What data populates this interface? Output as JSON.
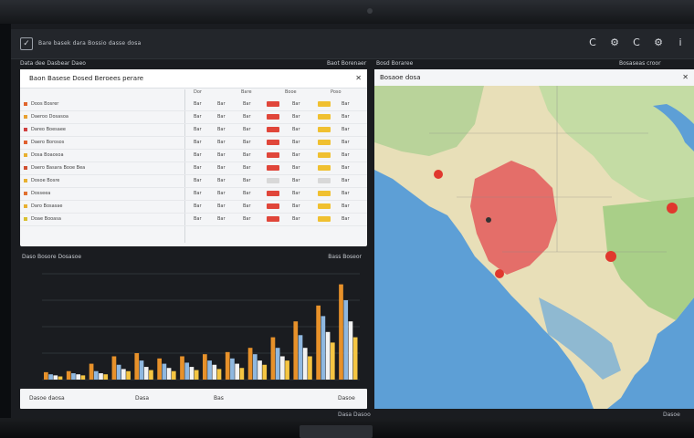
{
  "topbar": {
    "title": "Bare basek dara Bossio dasse dosa",
    "actions": [
      "C",
      "⚙",
      "C",
      "⚙",
      "i"
    ]
  },
  "sections": {
    "left_label": "Data dee Dasbear Daeo",
    "left_right_label": "Baot Borenaer",
    "map_section_left": "Bosd Boraree",
    "map_section_right": "Bosaseas croor"
  },
  "table": {
    "title": "Baon Basese Dosed Beroees perare",
    "col_headers": [
      "Dor",
      "Bare",
      "Booe",
      "Poso"
    ],
    "rows": [
      {
        "name": "Doos Bosrer",
        "color": "#e0642c",
        "c1": "Bar",
        "c2": "Bar",
        "c3": "Bar",
        "c4": "Bar",
        "c5": "Bar",
        "c6": "Bar",
        "p1": "#e0463a",
        "p2": "#f0c030"
      },
      {
        "name": "Daeroo Dosasoa",
        "color": "#e8a030",
        "c1": "Bar",
        "c2": "Bar",
        "c3": "Bar",
        "c4": "Bar",
        "c5": "Bar",
        "c6": "Bar",
        "p1": "#e0463a",
        "p2": "#f0c030"
      },
      {
        "name": "Dareo Boesaee",
        "color": "#d04040",
        "c1": "Bar",
        "c2": "Bar",
        "c3": "Bar",
        "c4": "Bar",
        "c5": "Bar",
        "c6": "Bar",
        "p1": "#e0463a",
        "p2": "#f0c030"
      },
      {
        "name": "Daero Borosos",
        "color": "#e06030",
        "c1": "Bar",
        "c2": "Bar",
        "c3": "Bar",
        "c4": "Bar",
        "c5": "Bar",
        "c6": "Bar",
        "p1": "#e0463a",
        "p2": "#f0c030"
      },
      {
        "name": "Dosa Boaosoa",
        "color": "#e8b030",
        "c1": "Bar",
        "c2": "Bar",
        "c3": "Bar",
        "c4": "Bar",
        "c5": "Bar",
        "c6": "Bar",
        "p1": "#e0463a",
        "p2": "#f0c030"
      },
      {
        "name": "Daero Basara Booe Bea",
        "color": "#d05030",
        "c1": "Bar",
        "c2": "Bar",
        "c3": "Bar",
        "c4": "Bar",
        "c5": "Bar",
        "c6": "Bar",
        "p1": "#e0463a",
        "p2": "#f0c030"
      },
      {
        "name": "Dosoe Bosre",
        "color": "#e8b030",
        "c1": "Bar",
        "c2": "Bar",
        "c3": "Bar",
        "c4": "Bar",
        "c5": "Bar",
        "c6": "Bar",
        "p1": "#d8d8d8",
        "p2": "#d8d8d8"
      },
      {
        "name": "Dosseea",
        "color": "#e07030",
        "c1": "Bar",
        "c2": "Bar",
        "c3": "Bar",
        "c4": "Bar",
        "c5": "Bar",
        "c6": "Bar",
        "p1": "#e0463a",
        "p2": "#f0c030"
      },
      {
        "name": "Daro Bosasae",
        "color": "#e8b030",
        "c1": "Bar",
        "c2": "Bar",
        "c3": "Bar",
        "c4": "Bar",
        "c5": "Bar",
        "c6": "Bar",
        "p1": "#e0463a",
        "p2": "#f0c030"
      },
      {
        "name": "Doae Booasa",
        "color": "#d8c030",
        "c1": "Bar",
        "c2": "Bar",
        "c3": "Bar",
        "c4": "Bar",
        "c5": "Bar",
        "c6": "Bar",
        "p1": "#e0463a",
        "p2": "#f0c030"
      }
    ]
  },
  "chart": {
    "title": "Daso Bosore Dosasoe",
    "right_label": "Bass Boseor",
    "foot_labels": [
      "Dasoe daosa",
      "Dasa",
      "Bas",
      "Dasoe"
    ],
    "colors": [
      "#e7912a",
      "#8fb8e0",
      "#f2f2f2",
      "#f5c542"
    ],
    "groups": [
      [
        0.07,
        0.05,
        0.04,
        0.03
      ],
      [
        0.08,
        0.06,
        0.05,
        0.04
      ],
      [
        0.15,
        0.08,
        0.06,
        0.05
      ],
      [
        0.22,
        0.14,
        0.1,
        0.08
      ],
      [
        0.25,
        0.18,
        0.12,
        0.09
      ],
      [
        0.2,
        0.15,
        0.11,
        0.08
      ],
      [
        0.22,
        0.16,
        0.12,
        0.09
      ],
      [
        0.24,
        0.18,
        0.14,
        0.1
      ],
      [
        0.26,
        0.2,
        0.15,
        0.11
      ],
      [
        0.3,
        0.24,
        0.18,
        0.14
      ],
      [
        0.4,
        0.3,
        0.22,
        0.18
      ],
      [
        0.55,
        0.42,
        0.3,
        0.22
      ],
      [
        0.7,
        0.6,
        0.45,
        0.35
      ],
      [
        0.9,
        0.75,
        0.55,
        0.4
      ]
    ]
  },
  "map": {
    "title": "Bosaoe dosa",
    "markers": [
      {
        "color": "#e0382e"
      },
      {
        "color": "#e0382e"
      },
      {
        "color": "#e0382e"
      },
      {
        "color": "#e0382e"
      },
      {
        "color": "#e0382e"
      }
    ]
  },
  "status": {
    "center": "Dasa Dasoo",
    "right": "Dasoe"
  }
}
